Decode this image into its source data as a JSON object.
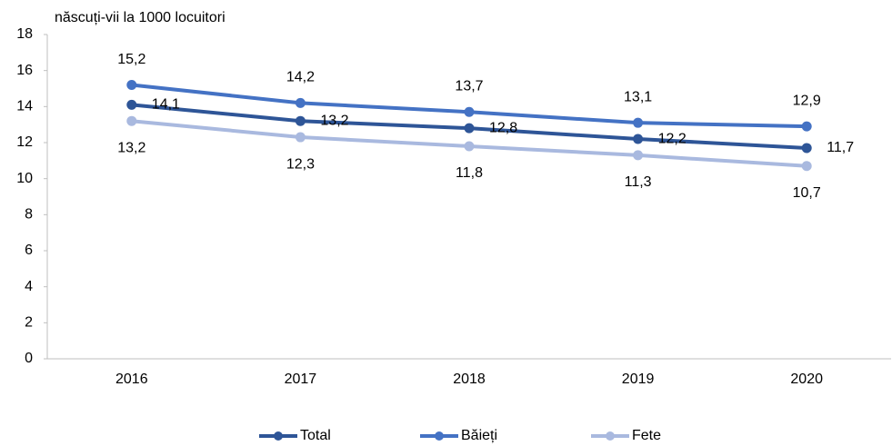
{
  "chart_data": {
    "type": "line",
    "y_axis_label": "născuți-vii la 1000 locuitori",
    "categories": [
      "2016",
      "2017",
      "2018",
      "2019",
      "2020"
    ],
    "series": [
      {
        "name": "Total",
        "color": "#2e5597",
        "values": [
          14.1,
          13.2,
          12.8,
          12.2,
          11.7
        ],
        "value_labels": [
          "14,1",
          "13,2",
          "12,8",
          "12,2",
          "11,7"
        ]
      },
      {
        "name": "Băieți",
        "color": "#4472c4",
        "values": [
          15.2,
          14.2,
          13.7,
          13.1,
          12.9
        ],
        "value_labels": [
          "15,2",
          "14,2",
          "13,7",
          "13,1",
          "12,9"
        ]
      },
      {
        "name": "Fete",
        "color": "#a9b9df",
        "values": [
          13.2,
          12.3,
          11.8,
          11.3,
          10.7
        ],
        "value_labels": [
          "13,2",
          "12,3",
          "11,8",
          "11,3",
          "10,7"
        ]
      }
    ],
    "ylim": [
      0,
      18
    ],
    "yticks": [
      0,
      2,
      4,
      6,
      8,
      10,
      12,
      14,
      16,
      18
    ],
    "legend": "bottom",
    "grid": false
  }
}
